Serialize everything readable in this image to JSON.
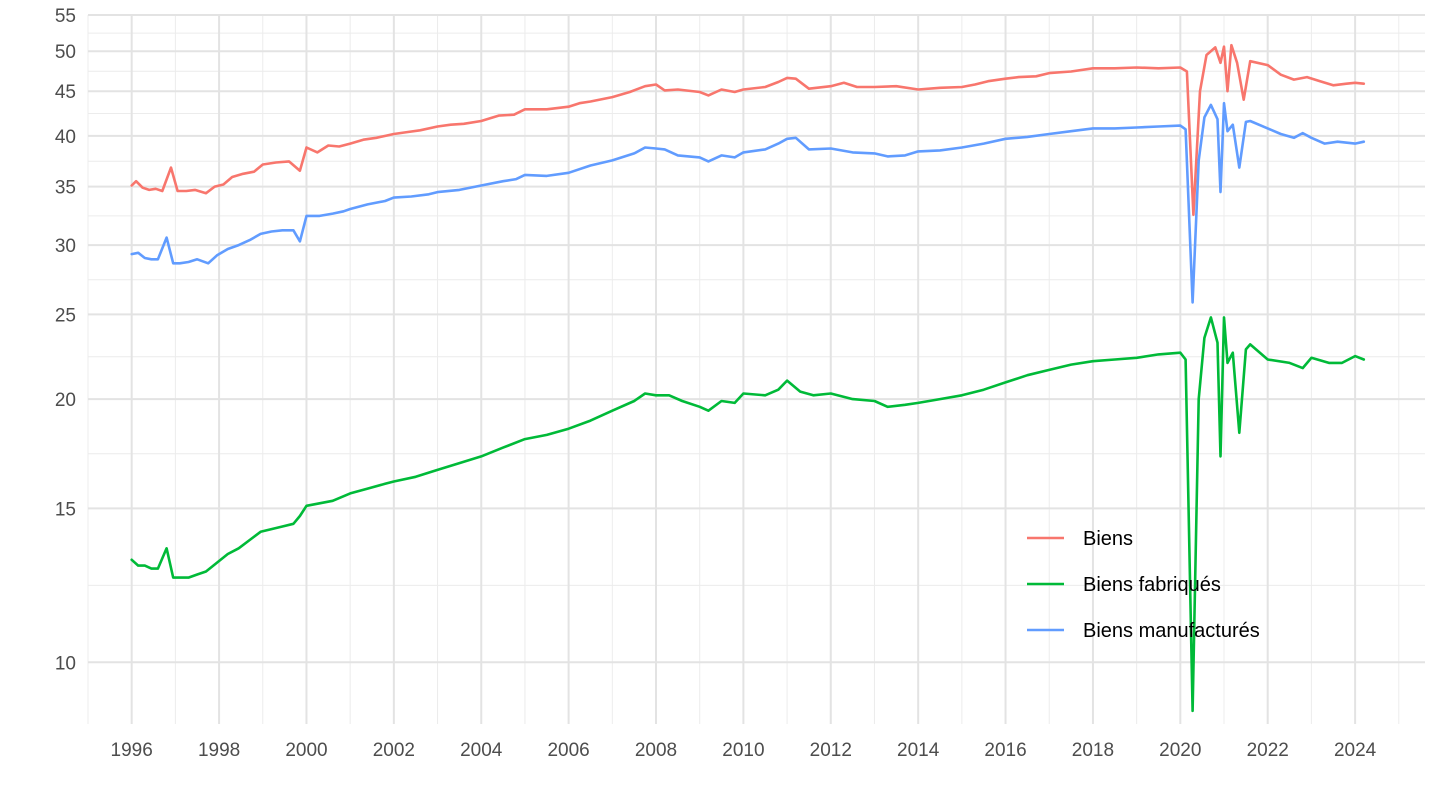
{
  "chart_data": {
    "type": "line",
    "title": "",
    "xlabel": "",
    "ylabel": "",
    "y_scale": "log",
    "grid": true,
    "legend_position": "bottom-right",
    "xlim": [
      1995,
      2025.6
    ],
    "ylim": [
      8.5,
      55
    ],
    "x_ticks": [
      "1996",
      "1998",
      "2000",
      "2002",
      "2004",
      "2006",
      "2008",
      "2010",
      "2012",
      "2014",
      "2016",
      "2018",
      "2020",
      "2022",
      "2024"
    ],
    "y_ticks": [
      "10",
      "15",
      "20",
      "25",
      "30",
      "35",
      "40",
      "45",
      "50",
      "55"
    ],
    "series": [
      {
        "name": "Biens",
        "color": "#F8766D",
        "points": [
          [
            1996.0,
            35.1
          ],
          [
            1996.1,
            35.5
          ],
          [
            1996.25,
            34.9
          ],
          [
            1996.4,
            34.7
          ],
          [
            1996.55,
            34.8
          ],
          [
            1996.7,
            34.6
          ],
          [
            1996.9,
            36.8
          ],
          [
            1997.05,
            34.6
          ],
          [
            1997.25,
            34.6
          ],
          [
            1997.45,
            34.7
          ],
          [
            1997.7,
            34.4
          ],
          [
            1997.9,
            35.0
          ],
          [
            1998.1,
            35.2
          ],
          [
            1998.3,
            35.9
          ],
          [
            1998.55,
            36.2
          ],
          [
            1998.8,
            36.4
          ],
          [
            1999.0,
            37.1
          ],
          [
            1999.3,
            37.3
          ],
          [
            1999.6,
            37.4
          ],
          [
            1999.85,
            36.5
          ],
          [
            2000.0,
            38.8
          ],
          [
            2000.25,
            38.3
          ],
          [
            2000.5,
            39.0
          ],
          [
            2000.75,
            38.9
          ],
          [
            2001.0,
            39.2
          ],
          [
            2001.3,
            39.6
          ],
          [
            2001.6,
            39.8
          ],
          [
            2002.0,
            40.2
          ],
          [
            2002.3,
            40.4
          ],
          [
            2002.6,
            40.6
          ],
          [
            2003.0,
            41.0
          ],
          [
            2003.3,
            41.2
          ],
          [
            2003.6,
            41.3
          ],
          [
            2004.0,
            41.6
          ],
          [
            2004.4,
            42.2
          ],
          [
            2004.75,
            42.3
          ],
          [
            2005.0,
            42.9
          ],
          [
            2005.5,
            42.9
          ],
          [
            2006.0,
            43.2
          ],
          [
            2006.25,
            43.6
          ],
          [
            2006.5,
            43.8
          ],
          [
            2007.0,
            44.3
          ],
          [
            2007.4,
            44.9
          ],
          [
            2007.75,
            45.6
          ],
          [
            2008.0,
            45.8
          ],
          [
            2008.2,
            45.1
          ],
          [
            2008.5,
            45.2
          ],
          [
            2009.0,
            44.9
          ],
          [
            2009.2,
            44.5
          ],
          [
            2009.5,
            45.2
          ],
          [
            2009.8,
            44.9
          ],
          [
            2010.0,
            45.2
          ],
          [
            2010.5,
            45.5
          ],
          [
            2010.8,
            46.1
          ],
          [
            2011.0,
            46.6
          ],
          [
            2011.2,
            46.5
          ],
          [
            2011.5,
            45.3
          ],
          [
            2012.0,
            45.6
          ],
          [
            2012.3,
            46.0
          ],
          [
            2012.6,
            45.5
          ],
          [
            2013.0,
            45.5
          ],
          [
            2013.5,
            45.6
          ],
          [
            2014.0,
            45.2
          ],
          [
            2014.5,
            45.4
          ],
          [
            2015.0,
            45.5
          ],
          [
            2015.3,
            45.8
          ],
          [
            2015.6,
            46.2
          ],
          [
            2016.0,
            46.5
          ],
          [
            2016.3,
            46.7
          ],
          [
            2016.7,
            46.8
          ],
          [
            2017.0,
            47.2
          ],
          [
            2017.5,
            47.4
          ],
          [
            2018.0,
            47.8
          ],
          [
            2018.5,
            47.8
          ],
          [
            2019.0,
            47.9
          ],
          [
            2019.5,
            47.8
          ],
          [
            2020.0,
            47.9
          ],
          [
            2020.15,
            47.4
          ],
          [
            2020.3,
            32.5
          ],
          [
            2020.45,
            45.0
          ],
          [
            2020.6,
            49.5
          ],
          [
            2020.8,
            50.5
          ],
          [
            2020.92,
            48.5
          ],
          [
            2021.0,
            50.6
          ],
          [
            2021.08,
            45.0
          ],
          [
            2021.17,
            50.8
          ],
          [
            2021.3,
            48.5
          ],
          [
            2021.45,
            44.0
          ],
          [
            2021.6,
            48.7
          ],
          [
            2022.0,
            48.2
          ],
          [
            2022.3,
            47.0
          ],
          [
            2022.6,
            46.4
          ],
          [
            2022.9,
            46.7
          ],
          [
            2023.2,
            46.2
          ],
          [
            2023.5,
            45.7
          ],
          [
            2023.8,
            45.9
          ],
          [
            2024.0,
            46.0
          ],
          [
            2024.2,
            45.9
          ]
        ]
      },
      {
        "name": "Biens fabriqués",
        "color": "#00BA38",
        "points": [
          [
            1996.0,
            13.1
          ],
          [
            1996.15,
            12.9
          ],
          [
            1996.3,
            12.9
          ],
          [
            1996.45,
            12.8
          ],
          [
            1996.6,
            12.8
          ],
          [
            1996.8,
            13.5
          ],
          [
            1996.95,
            12.5
          ],
          [
            1997.1,
            12.5
          ],
          [
            1997.3,
            12.5
          ],
          [
            1997.5,
            12.6
          ],
          [
            1997.7,
            12.7
          ],
          [
            1997.95,
            13.0
          ],
          [
            1998.2,
            13.3
          ],
          [
            1998.45,
            13.5
          ],
          [
            1998.7,
            13.8
          ],
          [
            1998.95,
            14.1
          ],
          [
            1999.2,
            14.2
          ],
          [
            1999.45,
            14.3
          ],
          [
            1999.7,
            14.4
          ],
          [
            1999.85,
            14.7
          ],
          [
            2000.0,
            15.1
          ],
          [
            2000.3,
            15.2
          ],
          [
            2000.6,
            15.3
          ],
          [
            2001.0,
            15.6
          ],
          [
            2001.4,
            15.8
          ],
          [
            2001.8,
            16.0
          ],
          [
            2002.0,
            16.1
          ],
          [
            2002.5,
            16.3
          ],
          [
            2003.0,
            16.6
          ],
          [
            2003.5,
            16.9
          ],
          [
            2004.0,
            17.2
          ],
          [
            2004.5,
            17.6
          ],
          [
            2005.0,
            18.0
          ],
          [
            2005.5,
            18.2
          ],
          [
            2006.0,
            18.5
          ],
          [
            2006.5,
            18.9
          ],
          [
            2007.0,
            19.4
          ],
          [
            2007.5,
            19.9
          ],
          [
            2007.75,
            20.3
          ],
          [
            2008.0,
            20.2
          ],
          [
            2008.3,
            20.2
          ],
          [
            2008.6,
            19.9
          ],
          [
            2009.0,
            19.6
          ],
          [
            2009.2,
            19.4
          ],
          [
            2009.5,
            19.9
          ],
          [
            2009.8,
            19.8
          ],
          [
            2010.0,
            20.3
          ],
          [
            2010.5,
            20.2
          ],
          [
            2010.8,
            20.5
          ],
          [
            2011.0,
            21.0
          ],
          [
            2011.3,
            20.4
          ],
          [
            2011.6,
            20.2
          ],
          [
            2012.0,
            20.3
          ],
          [
            2012.5,
            20.0
          ],
          [
            2013.0,
            19.9
          ],
          [
            2013.3,
            19.6
          ],
          [
            2013.7,
            19.7
          ],
          [
            2014.0,
            19.8
          ],
          [
            2014.5,
            20.0
          ],
          [
            2015.0,
            20.2
          ],
          [
            2015.5,
            20.5
          ],
          [
            2016.0,
            20.9
          ],
          [
            2016.5,
            21.3
          ],
          [
            2017.0,
            21.6
          ],
          [
            2017.5,
            21.9
          ],
          [
            2018.0,
            22.1
          ],
          [
            2018.5,
            22.2
          ],
          [
            2019.0,
            22.3
          ],
          [
            2019.5,
            22.5
          ],
          [
            2020.0,
            22.6
          ],
          [
            2020.12,
            22.2
          ],
          [
            2020.28,
            8.8
          ],
          [
            2020.42,
            20.0
          ],
          [
            2020.55,
            23.5
          ],
          [
            2020.7,
            24.8
          ],
          [
            2020.85,
            23.2
          ],
          [
            2020.92,
            17.2
          ],
          [
            2021.0,
            24.8
          ],
          [
            2021.08,
            22.0
          ],
          [
            2021.2,
            22.6
          ],
          [
            2021.35,
            18.3
          ],
          [
            2021.5,
            22.8
          ],
          [
            2021.6,
            23.1
          ],
          [
            2022.0,
            22.2
          ],
          [
            2022.5,
            22.0
          ],
          [
            2022.8,
            21.7
          ],
          [
            2023.0,
            22.3
          ],
          [
            2023.4,
            22.0
          ],
          [
            2023.7,
            22.0
          ],
          [
            2024.0,
            22.4
          ],
          [
            2024.2,
            22.2
          ]
        ]
      },
      {
        "name": "Biens manufacturés",
        "color": "#619CFF",
        "points": [
          [
            1996.0,
            29.3
          ],
          [
            1996.15,
            29.4
          ],
          [
            1996.3,
            29.0
          ],
          [
            1996.45,
            28.9
          ],
          [
            1996.6,
            28.9
          ],
          [
            1996.8,
            30.6
          ],
          [
            1996.95,
            28.6
          ],
          [
            1997.1,
            28.6
          ],
          [
            1997.3,
            28.7
          ],
          [
            1997.5,
            28.9
          ],
          [
            1997.75,
            28.6
          ],
          [
            1997.95,
            29.2
          ],
          [
            1998.2,
            29.7
          ],
          [
            1998.45,
            30.0
          ],
          [
            1998.7,
            30.4
          ],
          [
            1998.95,
            30.9
          ],
          [
            1999.2,
            31.1
          ],
          [
            1999.45,
            31.2
          ],
          [
            1999.7,
            31.2
          ],
          [
            1999.85,
            30.3
          ],
          [
            2000.0,
            32.4
          ],
          [
            2000.3,
            32.4
          ],
          [
            2000.6,
            32.6
          ],
          [
            2000.85,
            32.8
          ],
          [
            2001.0,
            33.0
          ],
          [
            2001.4,
            33.4
          ],
          [
            2001.8,
            33.7
          ],
          [
            2002.0,
            34.0
          ],
          [
            2002.4,
            34.1
          ],
          [
            2002.8,
            34.3
          ],
          [
            2003.0,
            34.5
          ],
          [
            2003.5,
            34.7
          ],
          [
            2004.0,
            35.1
          ],
          [
            2004.5,
            35.5
          ],
          [
            2004.8,
            35.7
          ],
          [
            2005.0,
            36.1
          ],
          [
            2005.5,
            36.0
          ],
          [
            2006.0,
            36.3
          ],
          [
            2006.5,
            37.0
          ],
          [
            2007.0,
            37.5
          ],
          [
            2007.5,
            38.2
          ],
          [
            2007.75,
            38.8
          ],
          [
            2008.0,
            38.7
          ],
          [
            2008.2,
            38.6
          ],
          [
            2008.5,
            38.0
          ],
          [
            2009.0,
            37.8
          ],
          [
            2009.2,
            37.4
          ],
          [
            2009.5,
            38.0
          ],
          [
            2009.8,
            37.8
          ],
          [
            2010.0,
            38.3
          ],
          [
            2010.5,
            38.6
          ],
          [
            2010.8,
            39.2
          ],
          [
            2011.0,
            39.7
          ],
          [
            2011.2,
            39.8
          ],
          [
            2011.5,
            38.6
          ],
          [
            2012.0,
            38.7
          ],
          [
            2012.5,
            38.3
          ],
          [
            2013.0,
            38.2
          ],
          [
            2013.3,
            37.9
          ],
          [
            2013.7,
            38.0
          ],
          [
            2014.0,
            38.4
          ],
          [
            2014.5,
            38.5
          ],
          [
            2015.0,
            38.8
          ],
          [
            2015.5,
            39.2
          ],
          [
            2016.0,
            39.7
          ],
          [
            2016.5,
            39.9
          ],
          [
            2017.0,
            40.2
          ],
          [
            2017.5,
            40.5
          ],
          [
            2018.0,
            40.8
          ],
          [
            2018.5,
            40.8
          ],
          [
            2019.0,
            40.9
          ],
          [
            2019.5,
            41.0
          ],
          [
            2020.0,
            41.1
          ],
          [
            2020.12,
            40.7
          ],
          [
            2020.28,
            25.8
          ],
          [
            2020.42,
            37.5
          ],
          [
            2020.55,
            42.0
          ],
          [
            2020.7,
            43.4
          ],
          [
            2020.85,
            41.8
          ],
          [
            2020.92,
            34.5
          ],
          [
            2021.0,
            43.6
          ],
          [
            2021.08,
            40.5
          ],
          [
            2021.2,
            41.2
          ],
          [
            2021.35,
            36.8
          ],
          [
            2021.5,
            41.5
          ],
          [
            2021.6,
            41.6
          ],
          [
            2022.0,
            40.8
          ],
          [
            2022.3,
            40.2
          ],
          [
            2022.6,
            39.8
          ],
          [
            2022.8,
            40.3
          ],
          [
            2023.0,
            39.8
          ],
          [
            2023.3,
            39.2
          ],
          [
            2023.6,
            39.4
          ],
          [
            2024.0,
            39.2
          ],
          [
            2024.2,
            39.4
          ]
        ]
      }
    ]
  }
}
